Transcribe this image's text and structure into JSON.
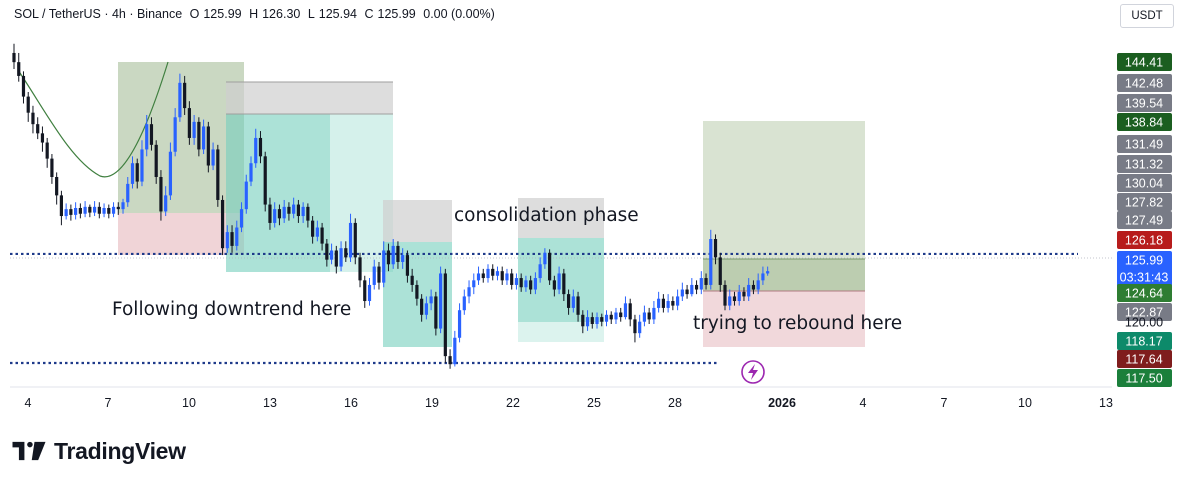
{
  "header": {
    "symbol": "SOL / TetherUS · 4h · Binance",
    "open_label": "O",
    "open": "125.99",
    "high_label": "H",
    "high": "126.30",
    "low_label": "L",
    "low": "125.94",
    "close_label": "C",
    "close": "125.99",
    "change": "0.00 (0.00%)",
    "currency": "USDT"
  },
  "brand": {
    "name": "TradingView"
  },
  "colors": {
    "up": "#2962ff",
    "down": "#131722",
    "level_line": "#1e3a8a",
    "green_zone": "#9fb88f",
    "red_zone": "#e6b8bd",
    "teal_zone": "#74cfbd",
    "grey_zone": "#cfcfcf"
  },
  "chart_data": {
    "type": "candlestick",
    "symbol": "SOL / TetherUS",
    "interval": "4h",
    "exchange": "Binance",
    "ylim": [
      116.0,
      147.0
    ],
    "x_ticks": [
      "4",
      "7",
      "10",
      "13",
      "16",
      "19",
      "22",
      "25",
      "28",
      "2026",
      "4",
      "7",
      "10",
      "13"
    ],
    "bold_tick": "2026",
    "levels": [
      127.5,
      118.0
    ],
    "annotations": [
      "consolidation phase",
      "Following downtrend here",
      "trying to rebound here"
    ],
    "price_labels": [
      {
        "value": "144.41",
        "color": "#1b5e20"
      },
      {
        "value": "142.48",
        "color": "#787b86"
      },
      {
        "value": "139.54",
        "color": "#787b86"
      },
      {
        "value": "138.84",
        "color": "#1b5e20"
      },
      {
        "value": "131.49",
        "color": "#787b86"
      },
      {
        "value": "131.32",
        "color": "#787b86"
      },
      {
        "value": "130.04",
        "color": "#787b86"
      },
      {
        "value": "127.82",
        "color": "#787b86"
      },
      {
        "value": "127.49",
        "color": "#787b86"
      },
      {
        "value": "126.18",
        "color": "#b71c1c"
      },
      {
        "value": "125.99",
        "color": "#2962ff",
        "sub": "03:31:43"
      },
      {
        "value": "124.64",
        "color": "#2e7d32"
      },
      {
        "value": "122.87",
        "color": "#787b86"
      },
      {
        "value": "120.00",
        "color": "#ffffff"
      },
      {
        "value": "118.17",
        "color": "#0d8a6a"
      },
      {
        "value": "117.64",
        "color": "#7f1d1d"
      },
      {
        "value": "117.50",
        "color": "#1b7f3b"
      }
    ],
    "candles": [
      [
        145.0,
        144.2,
        145.8,
        143.6
      ],
      [
        144.2,
        143.0,
        145.0,
        142.5
      ],
      [
        143.0,
        141.2,
        143.4,
        140.6
      ],
      [
        141.2,
        139.8,
        141.6,
        139.0
      ],
      [
        139.8,
        138.8,
        140.4,
        138.0
      ],
      [
        138.8,
        138.0,
        139.4,
        137.5
      ],
      [
        138.0,
        137.2,
        138.6,
        136.4
      ],
      [
        137.2,
        135.8,
        137.6,
        135.0
      ],
      [
        135.8,
        134.2,
        136.2,
        133.6
      ],
      [
        134.2,
        132.6,
        134.6,
        131.8
      ],
      [
        132.6,
        130.8,
        133.0,
        130.0
      ],
      [
        130.8,
        131.4,
        131.9,
        130.5
      ],
      [
        131.4,
        130.9,
        131.8,
        130.4
      ],
      [
        130.9,
        131.5,
        132.0,
        130.5
      ],
      [
        131.5,
        131.0,
        131.9,
        130.6
      ],
      [
        131.0,
        131.6,
        132.1,
        130.7
      ],
      [
        131.6,
        131.1,
        131.8,
        130.7
      ],
      [
        131.1,
        131.6,
        132.1,
        130.8
      ],
      [
        131.6,
        131.0,
        132.0,
        130.6
      ],
      [
        131.0,
        131.5,
        131.9,
        130.7
      ],
      [
        131.5,
        131.0,
        131.8,
        130.6
      ],
      [
        131.0,
        131.6,
        132.0,
        130.7
      ],
      [
        131.6,
        131.4,
        132.0,
        130.9
      ],
      [
        131.4,
        132.0,
        132.3,
        131.0
      ],
      [
        132.0,
        133.6,
        134.2,
        131.6
      ],
      [
        133.6,
        135.4,
        136.0,
        133.2
      ],
      [
        135.4,
        133.8,
        135.8,
        133.2
      ],
      [
        133.8,
        136.6,
        137.4,
        133.4
      ],
      [
        136.6,
        138.8,
        139.6,
        136.0
      ],
      [
        138.8,
        137.0,
        139.4,
        136.5
      ],
      [
        137.0,
        134.2,
        137.4,
        133.6
      ],
      [
        134.2,
        131.2,
        134.8,
        130.4
      ],
      [
        131.2,
        132.6,
        133.4,
        130.8
      ],
      [
        132.6,
        136.4,
        137.2,
        132.2
      ],
      [
        136.4,
        139.4,
        140.2,
        136.0
      ],
      [
        139.4,
        142.4,
        143.2,
        139.0
      ],
      [
        142.4,
        140.2,
        143.0,
        139.6
      ],
      [
        140.2,
        137.6,
        140.8,
        137.0
      ],
      [
        137.6,
        139.0,
        139.6,
        137.0
      ],
      [
        139.0,
        136.6,
        139.4,
        136.0
      ],
      [
        136.6,
        138.6,
        139.2,
        136.2
      ],
      [
        138.6,
        135.2,
        139.0,
        134.6
      ],
      [
        135.2,
        136.6,
        137.2,
        134.8
      ],
      [
        136.6,
        132.2,
        137.0,
        131.6
      ],
      [
        132.2,
        128.0,
        132.6,
        127.4
      ],
      [
        128.0,
        129.4,
        130.0,
        127.6
      ],
      [
        129.4,
        128.2,
        130.0,
        127.6
      ],
      [
        128.2,
        129.8,
        130.4,
        127.8
      ],
      [
        129.8,
        131.4,
        132.0,
        129.4
      ],
      [
        131.4,
        133.8,
        134.4,
        131.0
      ],
      [
        133.8,
        135.4,
        136.0,
        133.4
      ],
      [
        135.4,
        137.6,
        138.4,
        135.0
      ],
      [
        137.6,
        136.0,
        138.2,
        135.4
      ],
      [
        136.0,
        131.8,
        136.4,
        131.2
      ],
      [
        131.8,
        130.2,
        132.4,
        129.6
      ],
      [
        130.2,
        131.4,
        132.0,
        129.8
      ],
      [
        131.4,
        130.6,
        131.8,
        130.0
      ],
      [
        130.6,
        131.6,
        132.2,
        130.2
      ],
      [
        131.6,
        131.0,
        132.0,
        130.4
      ],
      [
        131.0,
        131.8,
        132.4,
        130.6
      ],
      [
        131.8,
        130.8,
        132.2,
        130.2
      ],
      [
        130.8,
        131.6,
        132.0,
        130.2
      ],
      [
        131.6,
        130.4,
        131.9,
        129.8
      ],
      [
        130.4,
        129.0,
        130.8,
        128.4
      ],
      [
        129.0,
        129.8,
        130.4,
        128.6
      ],
      [
        129.8,
        128.4,
        130.2,
        127.8
      ],
      [
        128.4,
        127.0,
        128.8,
        126.4
      ],
      [
        127.0,
        127.8,
        128.4,
        126.6
      ],
      [
        127.8,
        126.4,
        128.2,
        125.8
      ],
      [
        126.4,
        128.0,
        128.6,
        126.0
      ],
      [
        128.0,
        127.2,
        128.6,
        126.8
      ],
      [
        127.2,
        130.2,
        131.0,
        126.8
      ],
      [
        130.2,
        127.2,
        130.6,
        126.6
      ],
      [
        127.2,
        125.2,
        127.6,
        124.6
      ],
      [
        125.2,
        123.4,
        125.6,
        122.8
      ],
      [
        123.4,
        124.8,
        125.4,
        123.0
      ],
      [
        124.8,
        126.4,
        127.0,
        124.4
      ],
      [
        126.4,
        125.0,
        126.8,
        124.4
      ],
      [
        125.0,
        127.8,
        128.6,
        124.6
      ],
      [
        127.8,
        126.6,
        128.4,
        126.0
      ],
      [
        126.6,
        128.2,
        128.8,
        126.2
      ],
      [
        128.2,
        126.8,
        128.6,
        126.2
      ],
      [
        126.8,
        127.4,
        128.0,
        126.2
      ],
      [
        127.4,
        125.6,
        127.8,
        125.0
      ],
      [
        125.6,
        124.8,
        126.2,
        124.2
      ],
      [
        124.8,
        123.6,
        125.2,
        123.0
      ],
      [
        123.6,
        122.2,
        124.0,
        121.6
      ],
      [
        122.2,
        123.2,
        123.8,
        121.8
      ],
      [
        123.2,
        123.8,
        124.4,
        122.6
      ],
      [
        123.8,
        121.0,
        124.2,
        120.4
      ],
      [
        121.0,
        125.8,
        126.4,
        120.6
      ],
      [
        125.8,
        118.6,
        126.2,
        118.0
      ],
      [
        118.6,
        117.9,
        119.2,
        117.5
      ],
      [
        117.9,
        120.2,
        120.8,
        117.7
      ],
      [
        120.2,
        122.6,
        123.2,
        119.8
      ],
      [
        122.6,
        123.8,
        124.4,
        122.2
      ],
      [
        123.8,
        124.6,
        125.2,
        123.2
      ],
      [
        124.6,
        125.2,
        125.8,
        124.0
      ],
      [
        125.2,
        125.8,
        126.4,
        124.8
      ],
      [
        125.8,
        125.4,
        126.2,
        125.0
      ],
      [
        125.4,
        126.2,
        126.6,
        125.0
      ],
      [
        126.2,
        125.6,
        126.6,
        125.2
      ],
      [
        125.6,
        126.0,
        126.4,
        125.2
      ],
      [
        126.0,
        125.2,
        126.4,
        124.8
      ],
      [
        125.2,
        125.8,
        126.2,
        124.8
      ],
      [
        125.8,
        124.8,
        126.2,
        124.4
      ],
      [
        124.8,
        125.4,
        125.8,
        124.4
      ],
      [
        125.4,
        124.6,
        125.8,
        124.2
      ],
      [
        124.6,
        125.2,
        125.6,
        124.2
      ],
      [
        125.2,
        124.4,
        125.6,
        124.0
      ],
      [
        124.4,
        125.4,
        125.9,
        124.0
      ],
      [
        125.4,
        126.6,
        127.2,
        125.0
      ],
      [
        126.6,
        127.6,
        128.0,
        126.2
      ],
      [
        127.6,
        125.2,
        127.9,
        124.8
      ],
      [
        125.2,
        124.4,
        125.6,
        123.8
      ],
      [
        124.4,
        125.8,
        126.4,
        124.0
      ],
      [
        125.8,
        124.0,
        126.2,
        123.4
      ],
      [
        124.0,
        122.8,
        124.4,
        122.2
      ],
      [
        122.8,
        123.8,
        124.4,
        122.4
      ],
      [
        123.8,
        122.2,
        124.2,
        121.6
      ],
      [
        122.2,
        121.2,
        122.6,
        120.6
      ],
      [
        121.2,
        122.0,
        122.6,
        120.8
      ],
      [
        122.0,
        121.4,
        122.4,
        121.0
      ],
      [
        121.4,
        122.0,
        122.4,
        121.0
      ],
      [
        122.0,
        121.6,
        122.3,
        121.2
      ],
      [
        121.6,
        122.2,
        122.6,
        121.2
      ],
      [
        122.2,
        121.8,
        122.5,
        121.4
      ],
      [
        121.8,
        122.4,
        122.8,
        121.4
      ],
      [
        122.4,
        122.0,
        122.8,
        121.6
      ],
      [
        122.0,
        123.2,
        123.8,
        121.8
      ],
      [
        123.2,
        121.8,
        123.6,
        121.2
      ],
      [
        121.8,
        120.6,
        122.2,
        119.8
      ],
      [
        120.6,
        121.6,
        122.2,
        120.2
      ],
      [
        121.6,
        122.4,
        123.0,
        121.2
      ],
      [
        122.4,
        121.8,
        122.8,
        121.4
      ],
      [
        121.8,
        122.8,
        123.4,
        121.4
      ],
      [
        122.8,
        123.6,
        124.2,
        122.4
      ],
      [
        123.6,
        122.8,
        124.0,
        122.4
      ],
      [
        122.8,
        123.4,
        124.0,
        122.4
      ],
      [
        123.4,
        123.0,
        123.8,
        122.6
      ],
      [
        123.0,
        123.8,
        124.4,
        122.6
      ],
      [
        123.8,
        124.4,
        125.0,
        123.4
      ],
      [
        124.4,
        124.0,
        124.8,
        123.6
      ],
      [
        124.0,
        124.8,
        125.4,
        123.8
      ],
      [
        124.8,
        124.4,
        125.2,
        124.0
      ],
      [
        124.4,
        125.4,
        126.0,
        124.0
      ],
      [
        125.4,
        124.8,
        125.8,
        124.4
      ],
      [
        124.8,
        128.8,
        129.6,
        124.4
      ],
      [
        128.8,
        127.2,
        129.2,
        126.6
      ],
      [
        127.2,
        124.8,
        127.6,
        124.2
      ],
      [
        124.8,
        123.0,
        125.2,
        122.6
      ],
      [
        123.0,
        123.8,
        124.4,
        122.6
      ],
      [
        123.8,
        123.4,
        124.2,
        123.0
      ],
      [
        123.4,
        124.2,
        124.8,
        123.0
      ],
      [
        124.2,
        123.8,
        124.6,
        123.4
      ],
      [
        123.8,
        124.8,
        125.4,
        123.4
      ],
      [
        124.8,
        124.4,
        125.2,
        124.0
      ],
      [
        124.4,
        125.2,
        125.8,
        124.0
      ],
      [
        125.2,
        125.8,
        126.4,
        124.8
      ],
      [
        125.8,
        126.0,
        126.4,
        125.6
      ]
    ]
  }
}
